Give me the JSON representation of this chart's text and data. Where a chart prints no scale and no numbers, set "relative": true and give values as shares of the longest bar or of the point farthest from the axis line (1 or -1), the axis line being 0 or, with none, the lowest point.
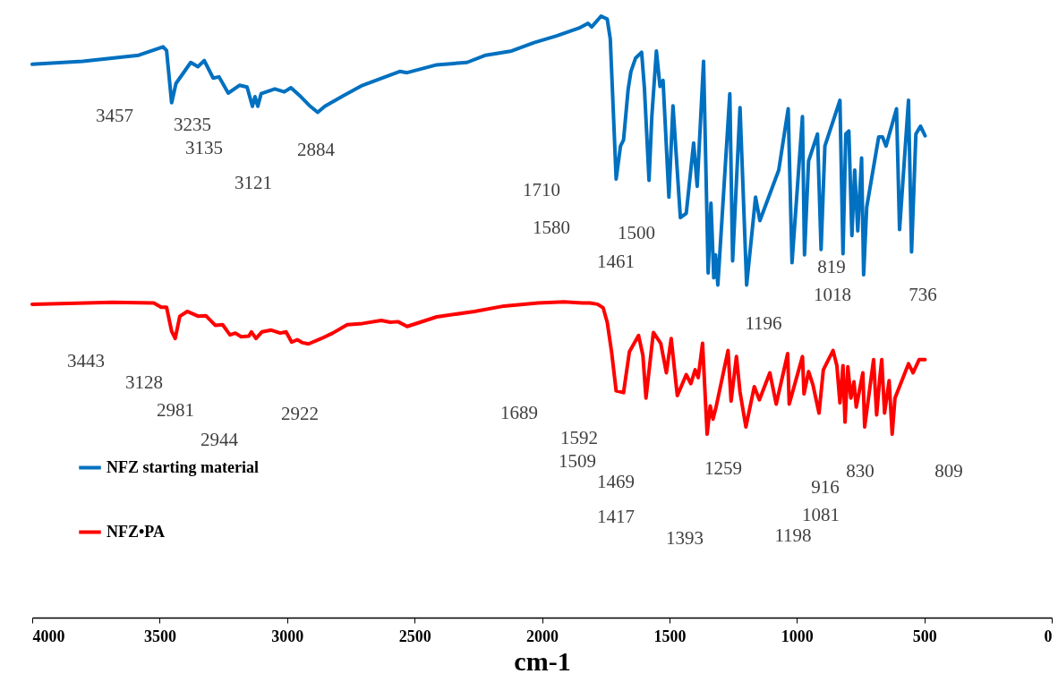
{
  "chart_data": {
    "type": "line",
    "relative": true,
    "xlabel": "cm-1",
    "xlim": [
      4000,
      0
    ],
    "xticks": [
      4000,
      3500,
      3000,
      2500,
      2000,
      1500,
      1000,
      500,
      0
    ],
    "grid": false,
    "legend": "bottom left",
    "line_style": "solid",
    "marker": "none",
    "series": [
      {
        "name": "NFZ starting material",
        "color": "#0070c0",
        "x": [
          4000,
          3802,
          3582,
          3487,
          3473,
          3453,
          3436,
          3378,
          3350,
          3325,
          3290,
          3267,
          3231,
          3187,
          3157,
          3136,
          3126,
          3115,
          3102,
          3048,
          3011,
          2985,
          2946,
          2909,
          2880,
          2852,
          2778,
          2704,
          2558,
          2529,
          2413,
          2294,
          2221,
          2119,
          2031,
          1943,
          1855,
          1819,
          1805,
          1768,
          1744,
          1732,
          1709,
          1692,
          1680,
          1662,
          1651,
          1633,
          1609,
          1598,
          1580,
          1569,
          1551,
          1537,
          1525,
          1502,
          1486,
          1457,
          1434,
          1405,
          1391,
          1366,
          1348,
          1337,
          1326,
          1319,
          1310,
          1263,
          1252,
          1223,
          1197,
          1162,
          1145,
          1071,
          1034,
          1019,
          978,
          970,
          954,
          919,
          905,
          890,
          831,
          819,
          808,
          796,
          784,
          773,
          761,
          746,
          738,
          726,
          679,
          664,
          650,
          609,
          597,
          562,
          550,
          533,
          515,
          497
        ],
        "values": [
          0.92,
          0.925,
          0.935,
          0.949,
          0.943,
          0.856,
          0.888,
          0.923,
          0.916,
          0.926,
          0.897,
          0.899,
          0.872,
          0.885,
          0.882,
          0.85,
          0.866,
          0.85,
          0.871,
          0.879,
          0.874,
          0.881,
          0.866,
          0.85,
          0.84,
          0.85,
          0.868,
          0.885,
          0.908,
          0.906,
          0.919,
          0.923,
          0.935,
          0.942,
          0.956,
          0.967,
          0.98,
          0.988,
          0.982,
          1.0,
          0.995,
          0.962,
          0.729,
          0.784,
          0.794,
          0.878,
          0.908,
          0.93,
          0.94,
          0.88,
          0.727,
          0.833,
          0.942,
          0.883,
          0.893,
          0.699,
          0.851,
          0.665,
          0.672,
          0.789,
          0.717,
          0.925,
          0.573,
          0.689,
          0.565,
          0.603,
          0.553,
          0.871,
          0.593,
          0.848,
          0.553,
          0.699,
          0.66,
          0.744,
          0.846,
          0.59,
          0.833,
          0.603,
          0.759,
          0.804,
          0.612,
          0.784,
          0.86,
          0.605,
          0.804,
          0.809,
          0.635,
          0.744,
          0.643,
          0.764,
          0.57,
          0.682,
          0.799,
          0.799,
          0.784,
          0.846,
          0.645,
          0.86,
          0.608,
          0.804,
          0.817,
          0.801
        ]
      },
      {
        "name": "NFZ•PA",
        "color": "#ff0000",
        "x": [
          4000,
          3685,
          3523,
          3494,
          3473,
          3453,
          3439,
          3421,
          3392,
          3348,
          3319,
          3282,
          3253,
          3224,
          3203,
          3180,
          3150,
          3140,
          3122,
          3099,
          3062,
          3027,
          3004,
          2982,
          2960,
          2939,
          2916,
          2866,
          2821,
          2764,
          2704,
          2631,
          2595,
          2565,
          2529,
          2413,
          2265,
          2149,
          2016,
          1914,
          1841,
          1812,
          1782,
          1760,
          1744,
          1727,
          1709,
          1680,
          1657,
          1621,
          1604,
          1592,
          1563,
          1534,
          1512,
          1493,
          1469,
          1434,
          1416,
          1399,
          1387,
          1370,
          1352,
          1340,
          1329,
          1317,
          1270,
          1258,
          1237,
          1223,
          1200,
          1167,
          1147,
          1106,
          1081,
          1036,
          1030,
          978,
          972,
          954,
          937,
          913,
          896,
          858,
          843,
          831,
          819,
          811,
          800,
          788,
          776,
          767,
          741,
          734,
          699,
          687,
          675,
          667,
          656,
          638,
          626,
          615,
          562,
          544,
          520,
          497
        ],
        "values": [
          0.521,
          0.524,
          0.523,
          0.516,
          0.516,
          0.476,
          0.464,
          0.501,
          0.509,
          0.501,
          0.502,
          0.486,
          0.487,
          0.47,
          0.473,
          0.467,
          0.468,
          0.475,
          0.464,
          0.475,
          0.478,
          0.473,
          0.475,
          0.458,
          0.462,
          0.457,
          0.455,
          0.464,
          0.473,
          0.487,
          0.489,
          0.494,
          0.491,
          0.492,
          0.484,
          0.5,
          0.509,
          0.518,
          0.523,
          0.525,
          0.523,
          0.523,
          0.521,
          0.515,
          0.491,
          0.442,
          0.377,
          0.374,
          0.442,
          0.469,
          0.436,
          0.365,
          0.474,
          0.456,
          0.407,
          0.464,
          0.369,
          0.404,
          0.389,
          0.412,
          0.399,
          0.456,
          0.305,
          0.352,
          0.33,
          0.35,
          0.444,
          0.36,
          0.434,
          0.375,
          0.317,
          0.384,
          0.362,
          0.407,
          0.355,
          0.439,
          0.355,
          0.434,
          0.372,
          0.409,
          0.387,
          0.34,
          0.412,
          0.444,
          0.419,
          0.357,
          0.419,
          0.325,
          0.417,
          0.365,
          0.392,
          0.35,
          0.407,
          0.317,
          0.429,
          0.337,
          0.397,
          0.429,
          0.34,
          0.394,
          0.305,
          0.365,
          0.422,
          0.407,
          0.429,
          0.429
        ]
      }
    ],
    "annotations": [
      "3457",
      "3235",
      "3135",
      "3121",
      "2884",
      "1710",
      "1580",
      "1500",
      "1461",
      "819",
      "1018",
      "736",
      "1196",
      "3443",
      "3128",
      "2981",
      "2944",
      "2922",
      "1689",
      "1592",
      "1509",
      "1469",
      "1417",
      "1393",
      "1259",
      "916",
      "830",
      "809",
      "1081",
      "1198"
    ]
  }
}
